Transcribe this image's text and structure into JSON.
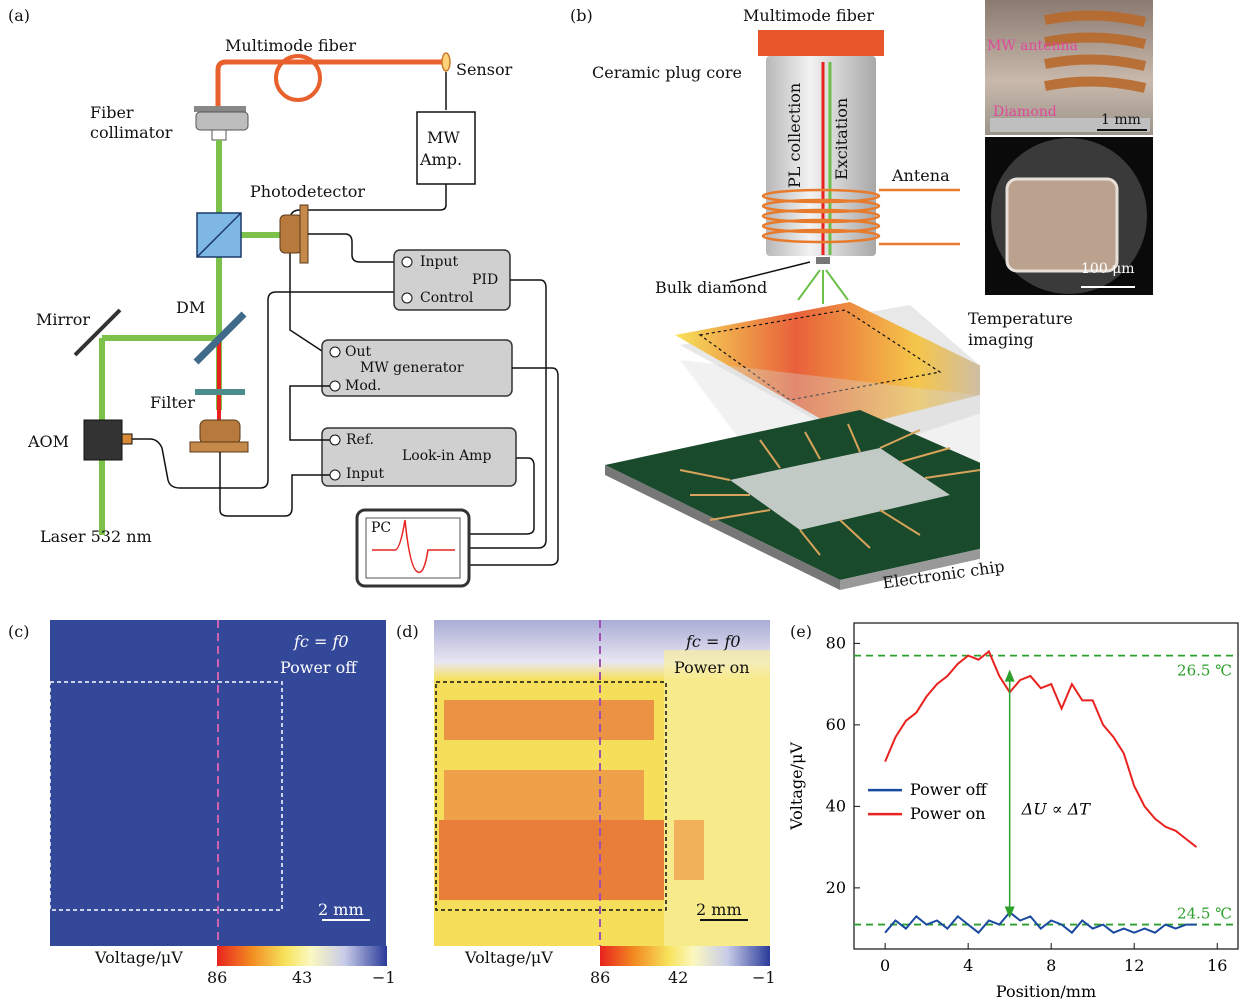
{
  "panel_labels": {
    "a": "(a)",
    "b": "(b)",
    "c": "(c)",
    "d": "(d)",
    "e": "(e)"
  },
  "panel_a": {
    "multimode_fiber": "Multimode fiber",
    "sensor": "Sensor",
    "fiber_collimator_line1": "Fiber",
    "fiber_collimator_line2": "collimator",
    "mw_amp_line1": "MW",
    "mw_amp_line2": "Amp.",
    "photodetector": "Photodetector",
    "pid": "PID",
    "pid_input": "Input",
    "pid_control": "Control",
    "mirror": "Mirror",
    "dm": "DM",
    "mw_generator": "MW generator",
    "mw_out": "Out",
    "mw_mod": "Mod.",
    "filter": "Filter",
    "aom": "AOM",
    "lockin": "Look-in Amp",
    "lockin_ref": "Ref.",
    "lockin_input": "Input",
    "laser": "Laser 532 nm",
    "pc": "PC"
  },
  "panel_b": {
    "multimode_fiber": "Multimode fiber",
    "ceramic": "Ceramic plug core",
    "pl_collection": "PL collection",
    "excitation": "Excitation",
    "antenna": "Antena",
    "bulk_diamond": "Bulk diamond",
    "temperature_line1": "Temperature",
    "temperature_line2": "imaging",
    "chip": "Electronic chip",
    "mw_antenna": "MW antenna",
    "diamond": "Diamond",
    "scale_1mm": "1 mm",
    "scale_100um": "100 μm"
  },
  "panel_c": {
    "cond1": "fc = f0",
    "cond2": "Power off",
    "scale": "2 mm",
    "cbar_label": "Voltage/μV",
    "ticks": [
      "86",
      "43",
      "−1"
    ]
  },
  "panel_d": {
    "cond1": "fc = f0",
    "cond2": "Power on",
    "scale": "2 mm",
    "cbar_label": "Voltage/μV",
    "ticks": [
      "86",
      "42",
      "−1"
    ]
  },
  "chart_data": {
    "type": "line",
    "xlabel": "Position/mm",
    "ylabel": "Voltage/μV",
    "xlim": [
      -1.5,
      17
    ],
    "ylim": [
      5,
      85
    ],
    "xticks": [
      0,
      4,
      8,
      12,
      16
    ],
    "yticks": [
      20,
      40,
      60,
      80
    ],
    "legend_position": "center-left",
    "series": [
      {
        "name": "Power on",
        "color": "#e8231f",
        "x": [
          0,
          0.5,
          1,
          1.5,
          2,
          2.5,
          3,
          3.5,
          4,
          4.5,
          5,
          5.5,
          6,
          6.5,
          7,
          7.5,
          8,
          8.5,
          9,
          9.5,
          10,
          10.5,
          11,
          11.5,
          12,
          12.5,
          13,
          13.5,
          14,
          14.5,
          15
        ],
        "y": [
          51,
          57,
          61,
          63,
          67,
          70,
          72,
          75,
          77,
          76,
          78,
          72,
          68,
          71,
          72,
          69,
          70,
          64,
          70,
          66,
          66,
          60,
          57,
          53,
          45,
          40,
          37,
          35,
          34,
          32,
          30
        ]
      },
      {
        "name": "Power off",
        "color": "#1a4aa0",
        "x": [
          0,
          0.5,
          1,
          1.5,
          2,
          2.5,
          3,
          3.5,
          4,
          4.5,
          5,
          5.5,
          6,
          6.5,
          7,
          7.5,
          8,
          8.5,
          9,
          9.5,
          10,
          10.5,
          11,
          11.5,
          12,
          12.5,
          13,
          13.5,
          14,
          14.5,
          15
        ],
        "y": [
          9,
          12,
          10,
          13,
          11,
          12,
          10,
          13,
          11,
          9,
          12,
          11,
          14,
          12,
          13,
          10,
          12,
          11,
          9,
          12,
          10,
          11,
          9,
          10,
          9,
          10,
          9,
          11,
          10,
          11,
          11
        ]
      }
    ],
    "hlines": [
      {
        "y": 77,
        "label": "26.5 ℃",
        "color": "#2ca02c"
      },
      {
        "y": 11,
        "label": "24.5 ℃",
        "color": "#2ca02c"
      }
    ],
    "annotation": "ΔU ∝ ΔT",
    "annotation_x": 6
  }
}
